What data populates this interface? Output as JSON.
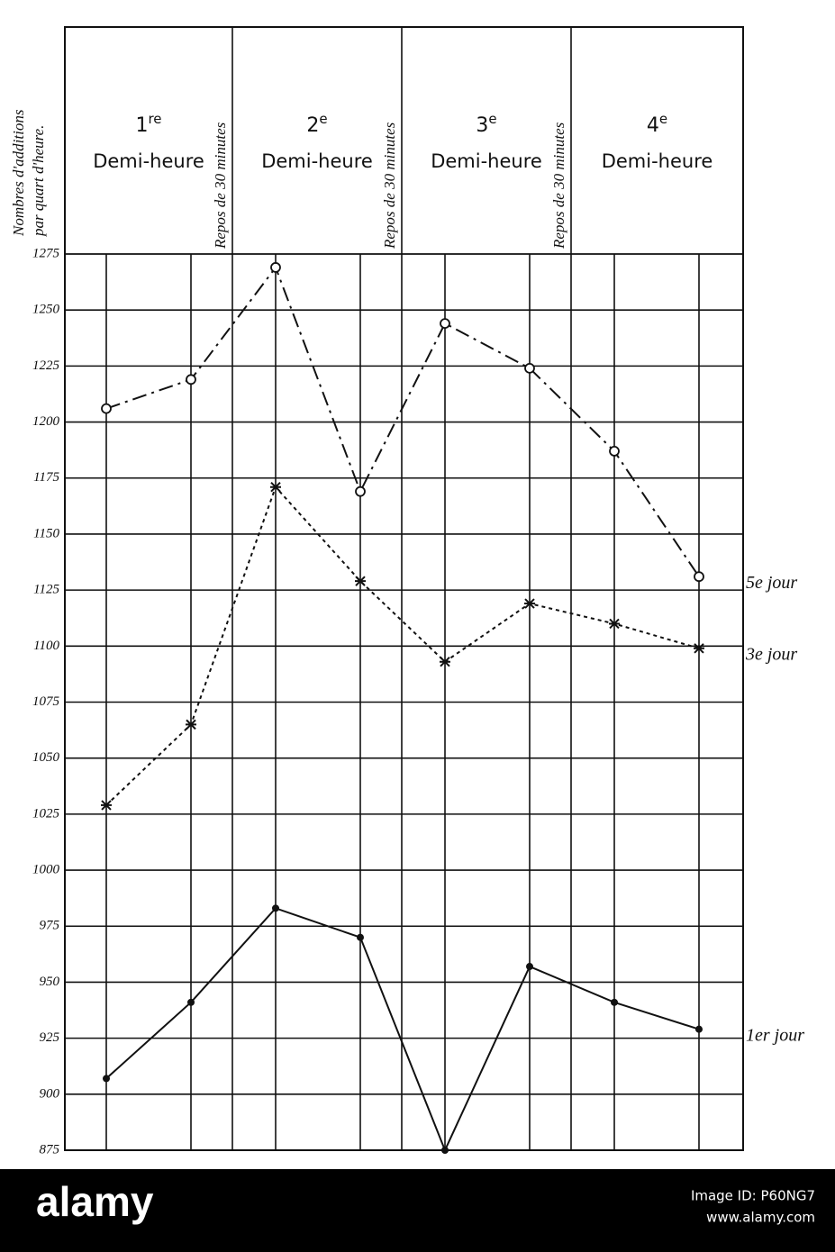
{
  "chart_data": {
    "type": "line",
    "y_label": [
      "Nombres d'additions",
      "par quart d'heure."
    ],
    "periods": [
      {
        "number": "1",
        "suffix": "re",
        "label": "Demi-heure"
      },
      {
        "number": "2",
        "suffix": "e",
        "label": "Demi-heure"
      },
      {
        "number": "3",
        "suffix": "e",
        "label": "Demi-heure"
      },
      {
        "number": "4",
        "suffix": "e",
        "label": "Demi-heure"
      }
    ],
    "rest_labels": [
      "Repos de 30 minutes",
      "Repos de 30 minutes",
      "Repos de 30 minutes"
    ],
    "categories": [
      null,
      null,
      null,
      null,
      null,
      null,
      null,
      null
    ],
    "series": [
      {
        "name": "5e jour",
        "color": "#111111",
        "line_style": "dashdot",
        "marker": "circle",
        "values": [
          1206,
          1219,
          1269,
          1169,
          1244,
          1224,
          1187,
          1131
        ]
      },
      {
        "name": "3e jour",
        "color": "#111111",
        "line_style": "dotted",
        "marker": "cross",
        "values": [
          1029,
          1065,
          1171,
          1129,
          1093,
          1119,
          1110,
          1099
        ]
      },
      {
        "name": "1er jour",
        "color": "#111111",
        "line_style": "solid",
        "marker": "dot",
        "values": [
          907,
          941,
          983,
          970,
          875,
          957,
          941,
          929
        ]
      }
    ],
    "ylim": [
      875,
      1275
    ],
    "yticks": [
      1275,
      1250,
      1225,
      1200,
      1175,
      1150,
      1125,
      1100,
      1075,
      1050,
      1025,
      1000,
      975,
      950,
      925,
      900,
      875
    ],
    "grid": true
  },
  "watermark": {
    "brand": "alamy",
    "image_id": "Image ID: P60NG7",
    "url": "www.alamy.com"
  }
}
